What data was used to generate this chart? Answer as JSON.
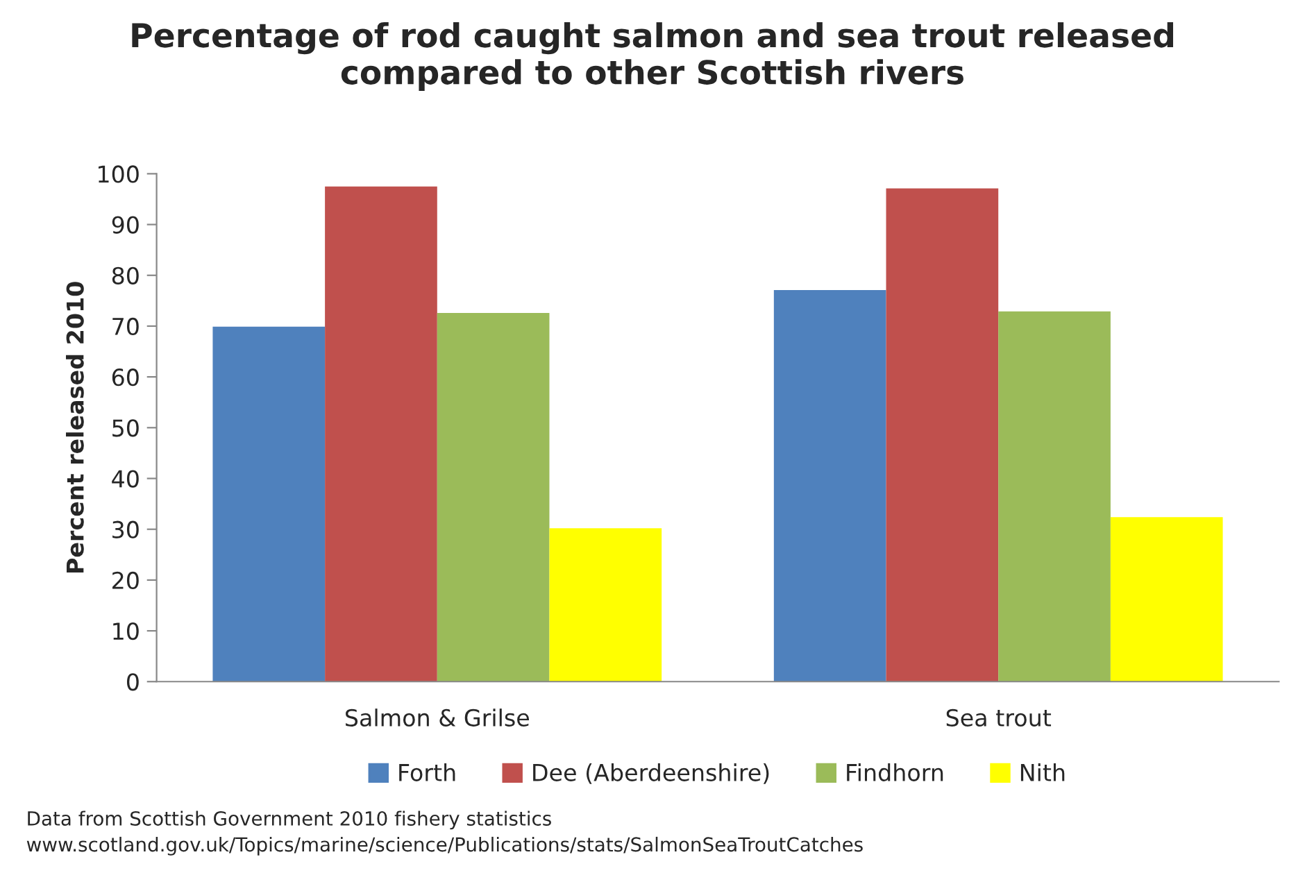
{
  "chart_data": {
    "type": "bar",
    "title": "Percentage of rod caught salmon and sea trout released\ncompared to other Scottish rivers",
    "ylabel": "Percent released 2010",
    "categories": [
      "Salmon & Grilse",
      "Sea trout"
    ],
    "series": [
      {
        "name": "Forth",
        "color": "#4f81bd",
        "values": [
          69.9,
          77.1
        ]
      },
      {
        "name": "Dee (Aberdeenshire)",
        "color": "#c0504d",
        "values": [
          97.5,
          97.1
        ]
      },
      {
        "name": "Findhorn",
        "color": "#9bbb59",
        "values": [
          72.6,
          72.9
        ]
      },
      {
        "name": "Nith",
        "color": "#ffff00",
        "values": [
          30.2,
          32.4
        ]
      }
    ],
    "ylim": [
      0,
      100
    ],
    "yticks": [
      0,
      10,
      20,
      30,
      40,
      50,
      60,
      70,
      80,
      90,
      100
    ],
    "grid": false,
    "legend": "bottom",
    "annotations": [
      "Data from Scottish Government 2010 fishery statistics\nwww.scotland.gov.uk/Topics/marine/science/Publications/stats/SalmonSeaTroutCatches"
    ]
  }
}
